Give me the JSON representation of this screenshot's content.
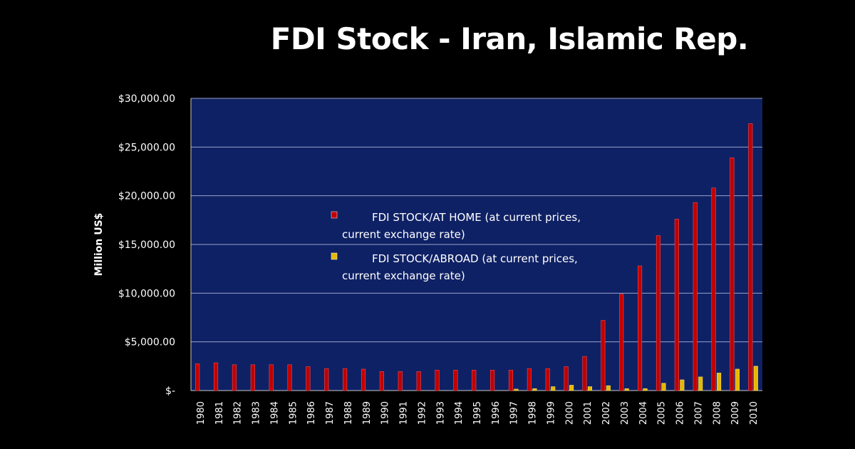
{
  "title": "FDI Stock - Iran, Islamic Rep.",
  "chart_data": {
    "type": "bar",
    "title": "FDI Stock - Iran, Islamic Rep.",
    "xlabel": "",
    "ylabel": "Million US$",
    "ylim": [
      0,
      30000
    ],
    "yticks": [
      0,
      5000,
      10000,
      15000,
      20000,
      25000,
      30000
    ],
    "ytick_labels": [
      "$-",
      "$5,000.00",
      "$10,000.00",
      "$15,000.00",
      "$20,000.00",
      "$25,000.00",
      "$30,000.00"
    ],
    "grid": true,
    "legend_position": "center",
    "categories": [
      "1980",
      "1981",
      "1982",
      "1983",
      "1984",
      "1985",
      "1986",
      "1987",
      "1988",
      "1989",
      "1990",
      "1991",
      "1992",
      "1993",
      "1994",
      "1995",
      "1996",
      "1997",
      "1998",
      "1999",
      "2000",
      "2001",
      "2002",
      "2003",
      "2004",
      "2005",
      "2006",
      "2007",
      "2008",
      "2009",
      "2010"
    ],
    "series": [
      {
        "name": "FDI STOCK/AT HOME (at current prices, current exchange rate)",
        "legend_lines": [
          "FDI STOCK/AT HOME (at current prices,",
          "current exchange rate)"
        ],
        "color": "#c00000",
        "values": [
          2750,
          2850,
          2650,
          2650,
          2650,
          2650,
          2450,
          2250,
          2250,
          2200,
          1950,
          1950,
          1950,
          2100,
          2100,
          2100,
          2100,
          2100,
          2250,
          2250,
          2450,
          3500,
          7200,
          9900,
          12800,
          15900,
          17600,
          19300,
          20800,
          23900,
          27400
        ]
      },
      {
        "name": "FDI STOCK/ABROAD (at current prices, current exchange rate)",
        "legend_lines": [
          "FDI STOCK/ABROAD (at current prices,",
          "current exchange rate)"
        ],
        "color": "#e6b800",
        "values": [
          0,
          0,
          0,
          0,
          0,
          0,
          0,
          0,
          0,
          0,
          0,
          0,
          0,
          0,
          0,
          0,
          0,
          150,
          200,
          400,
          550,
          400,
          500,
          200,
          200,
          750,
          1100,
          1400,
          1800,
          2200,
          2500
        ]
      }
    ]
  },
  "colors": {
    "background": "#000000",
    "plot_area": "#0f2165",
    "gridline": "#9aa3c8"
  }
}
